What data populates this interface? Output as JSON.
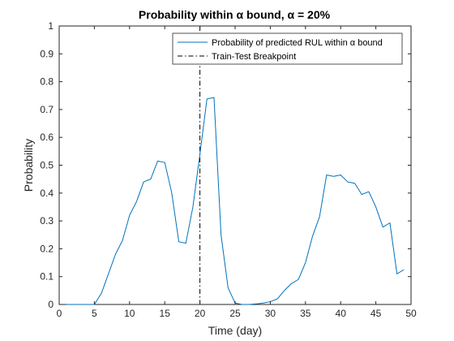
{
  "chart_data": {
    "type": "line",
    "title": "Probability within α bound, α = 20%",
    "xlabel": "Time (day)",
    "ylabel": "Probability",
    "xlim": [
      0,
      50
    ],
    "ylim": [
      0,
      1
    ],
    "xticks": [
      0,
      5,
      10,
      15,
      20,
      25,
      30,
      35,
      40,
      45,
      50
    ],
    "yticks": [
      0,
      0.1,
      0.2,
      0.3,
      0.4,
      0.5,
      0.6,
      0.7,
      0.8,
      0.9,
      1
    ],
    "xtick_labels": [
      "0",
      "5",
      "10",
      "15",
      "20",
      "25",
      "30",
      "35",
      "40",
      "45",
      "50"
    ],
    "ytick_labels": [
      "0",
      "0.1",
      "0.2",
      "0.3",
      "0.4",
      "0.5",
      "0.6",
      "0.7",
      "0.8",
      "0.9",
      "1"
    ],
    "grid": false,
    "legend_position": "top-right",
    "series": [
      {
        "name": "Probability of predicted RUL within α bound",
        "color": "#0072BD",
        "x": [
          1,
          2,
          3,
          4,
          5,
          6,
          7,
          8,
          9,
          10,
          11,
          12,
          13,
          14,
          15,
          16,
          17,
          18,
          19,
          20,
          21,
          22,
          23,
          24,
          25,
          26,
          27,
          28,
          29,
          30,
          31,
          32,
          33,
          34,
          35,
          36,
          37,
          38,
          39,
          40,
          41,
          42,
          43,
          44,
          45,
          46,
          47,
          48,
          49
        ],
        "y": [
          0,
          0,
          0,
          0,
          0,
          0.04,
          0.11,
          0.18,
          0.23,
          0.32,
          0.37,
          0.44,
          0.45,
          0.515,
          0.51,
          0.4,
          0.225,
          0.22,
          0.35,
          0.54,
          0.738,
          0.743,
          0.25,
          0.06,
          0.005,
          0,
          0,
          0.002,
          0.005,
          0.01,
          0.02,
          0.05,
          0.075,
          0.09,
          0.15,
          0.245,
          0.315,
          0.465,
          0.46,
          0.465,
          0.44,
          0.435,
          0.395,
          0.405,
          0.35,
          0.278,
          0.293,
          0.11,
          0.125
        ]
      }
    ],
    "reference_lines": [
      {
        "name": "Train-Test Breakpoint",
        "orientation": "vertical",
        "x": 20,
        "style": "dash-dot",
        "color": "#000000"
      }
    ]
  }
}
